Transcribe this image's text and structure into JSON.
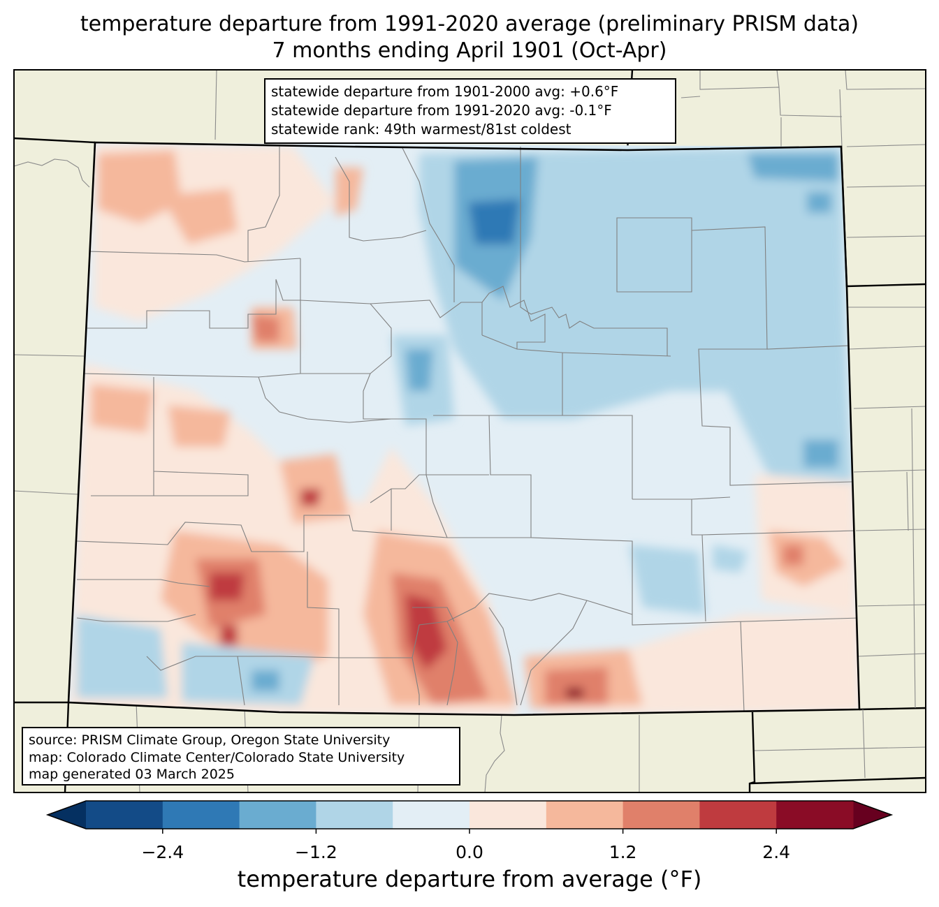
{
  "title": {
    "line1": "temperature departure from 1991-2020 average (preliminary PRISM data)",
    "line2": "7 months ending April 1901 (Oct-Apr)"
  },
  "stats": {
    "line1": "statewide departure from 1901-2000 avg: +0.6°F",
    "line2": "statewide departure from 1991-2020 avg: -0.1°F",
    "line3": "statewide rank: 49th warmest/81st coldest"
  },
  "source": {
    "line1": "source: PRISM Climate Group, Oregon State University",
    "line2": "map: Colorado Climate Center/Colorado State University",
    "line3": "map generated 03 March 2025"
  },
  "colorbar": {
    "label": "temperature departure from average (°F)",
    "ticks": [
      "−2.4",
      "−1.2",
      "0.0",
      "1.2",
      "2.4"
    ],
    "tick_values": [
      -2.4,
      -1.2,
      0.0,
      1.2,
      2.4
    ],
    "min": -3.0,
    "max": 3.0,
    "under_color": "#053061",
    "over_color": "#67001f",
    "bins": [
      {
        "from": -3.0,
        "to": -2.4,
        "color": "#134b87"
      },
      {
        "from": -2.4,
        "to": -1.8,
        "color": "#2f79b5"
      },
      {
        "from": -1.8,
        "to": -1.2,
        "color": "#6aacd0"
      },
      {
        "from": -1.2,
        "to": -0.6,
        "color": "#b0d5e7"
      },
      {
        "from": -0.6,
        "to": 0.0,
        "color": "#e3eef5"
      },
      {
        "from": 0.0,
        "to": 0.6,
        "color": "#fae7dc"
      },
      {
        "from": 0.6,
        "to": 1.2,
        "color": "#f5b89c"
      },
      {
        "from": 1.2,
        "to": 1.8,
        "color": "#e0806a"
      },
      {
        "from": 1.8,
        "to": 2.4,
        "color": "#bf3b3f"
      },
      {
        "from": 2.4,
        "to": 3.0,
        "color": "#8a0c26"
      }
    ]
  },
  "map_colors": {
    "land": "#efefdc",
    "state_border": "#000000",
    "county_border": "#808080"
  }
}
